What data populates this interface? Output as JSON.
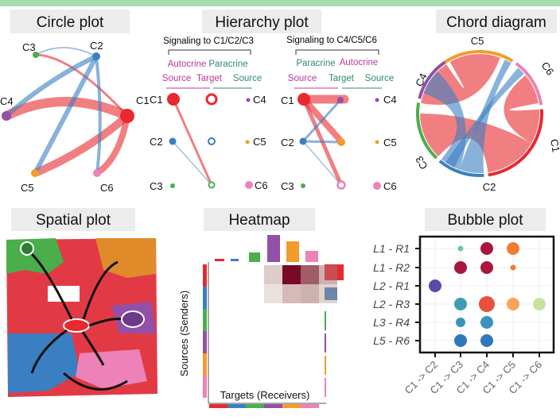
{
  "colors": {
    "C1": "#e8292e",
    "C2": "#3a7fc1",
    "C3": "#4aae4a",
    "C4": "#9250a6",
    "C5": "#f29c2b",
    "C6": "#ec82b8",
    "banner": "#a9dcae",
    "title_bg": "#ececec"
  },
  "panels": {
    "circle": {
      "title": "Circle plot",
      "nodes": [
        "C1",
        "C2",
        "C3",
        "C4",
        "C5",
        "C6"
      ]
    },
    "hierarchy": {
      "title": "Hierarchy plot",
      "left": {
        "heading": "Signaling to C1/C2/C3",
        "top_left": "Autocrine",
        "top_right": "Paracrine",
        "source_left": "Source",
        "target": "Target",
        "source_right": "Source",
        "left_nodes": [
          "C1",
          "C2",
          "C3"
        ],
        "right_nodes": [
          "C4",
          "C5",
          "C6"
        ]
      },
      "right": {
        "heading": "Signaling to C4/C5/C6",
        "top_left": "Paracrine",
        "top_right": "Autocrine",
        "source_left": "Source",
        "target": "Target",
        "source_right": "Source",
        "left_nodes": [
          "C1",
          "C2",
          "C3"
        ],
        "right_nodes": [
          "C4",
          "C5",
          "C6"
        ]
      }
    },
    "chord": {
      "title": "Chord diagram",
      "labels": [
        "C5",
        "C6",
        "C1",
        "C2",
        "C3",
        "C4"
      ]
    },
    "spatial": {
      "title": "Spatial plot"
    },
    "heatmap": {
      "title": "Heatmap",
      "ylabel": "Sources (Senders)",
      "xlabel": "Targets (Receivers)"
    },
    "bubble": {
      "title": "Bubble plot",
      "rows": [
        "L1 - R1",
        "L1 - R2",
        "L2 - R1",
        "L2 - R3",
        "L3 - R4",
        "L5 - R6"
      ],
      "cols": [
        "C1 -> C2",
        "C1 -> C3",
        "C1 -> C4",
        "C1 -> C5",
        "C1 -> C6"
      ],
      "points": [
        {
          "row": 0,
          "col": 1,
          "size": 1,
          "color": "#6fc6a0"
        },
        {
          "row": 0,
          "col": 2,
          "size": 3,
          "color": "#a8153f"
        },
        {
          "row": 0,
          "col": 3,
          "size": 3,
          "color": "#f27b35"
        },
        {
          "row": 1,
          "col": 1,
          "size": 3,
          "color": "#a8153f"
        },
        {
          "row": 1,
          "col": 2,
          "size": 3,
          "color": "#a8153f"
        },
        {
          "row": 1,
          "col": 3,
          "size": 1,
          "color": "#f27b35"
        },
        {
          "row": 2,
          "col": 0,
          "size": 3,
          "color": "#5a4aa8"
        },
        {
          "row": 3,
          "col": 1,
          "size": 3,
          "color": "#3e9db5"
        },
        {
          "row": 3,
          "col": 2,
          "size": 4,
          "color": "#e8513a"
        },
        {
          "row": 3,
          "col": 3,
          "size": 3,
          "color": "#f8a55a"
        },
        {
          "row": 3,
          "col": 4,
          "size": 3,
          "color": "#c9e29a"
        },
        {
          "row": 4,
          "col": 1,
          "size": 2,
          "color": "#3b93bb"
        },
        {
          "row": 4,
          "col": 2,
          "size": 3,
          "color": "#3b93bb"
        },
        {
          "row": 5,
          "col": 1,
          "size": 3,
          "color": "#2f78bd"
        },
        {
          "row": 5,
          "col": 2,
          "size": 3,
          "color": "#2f78bd"
        }
      ]
    }
  }
}
